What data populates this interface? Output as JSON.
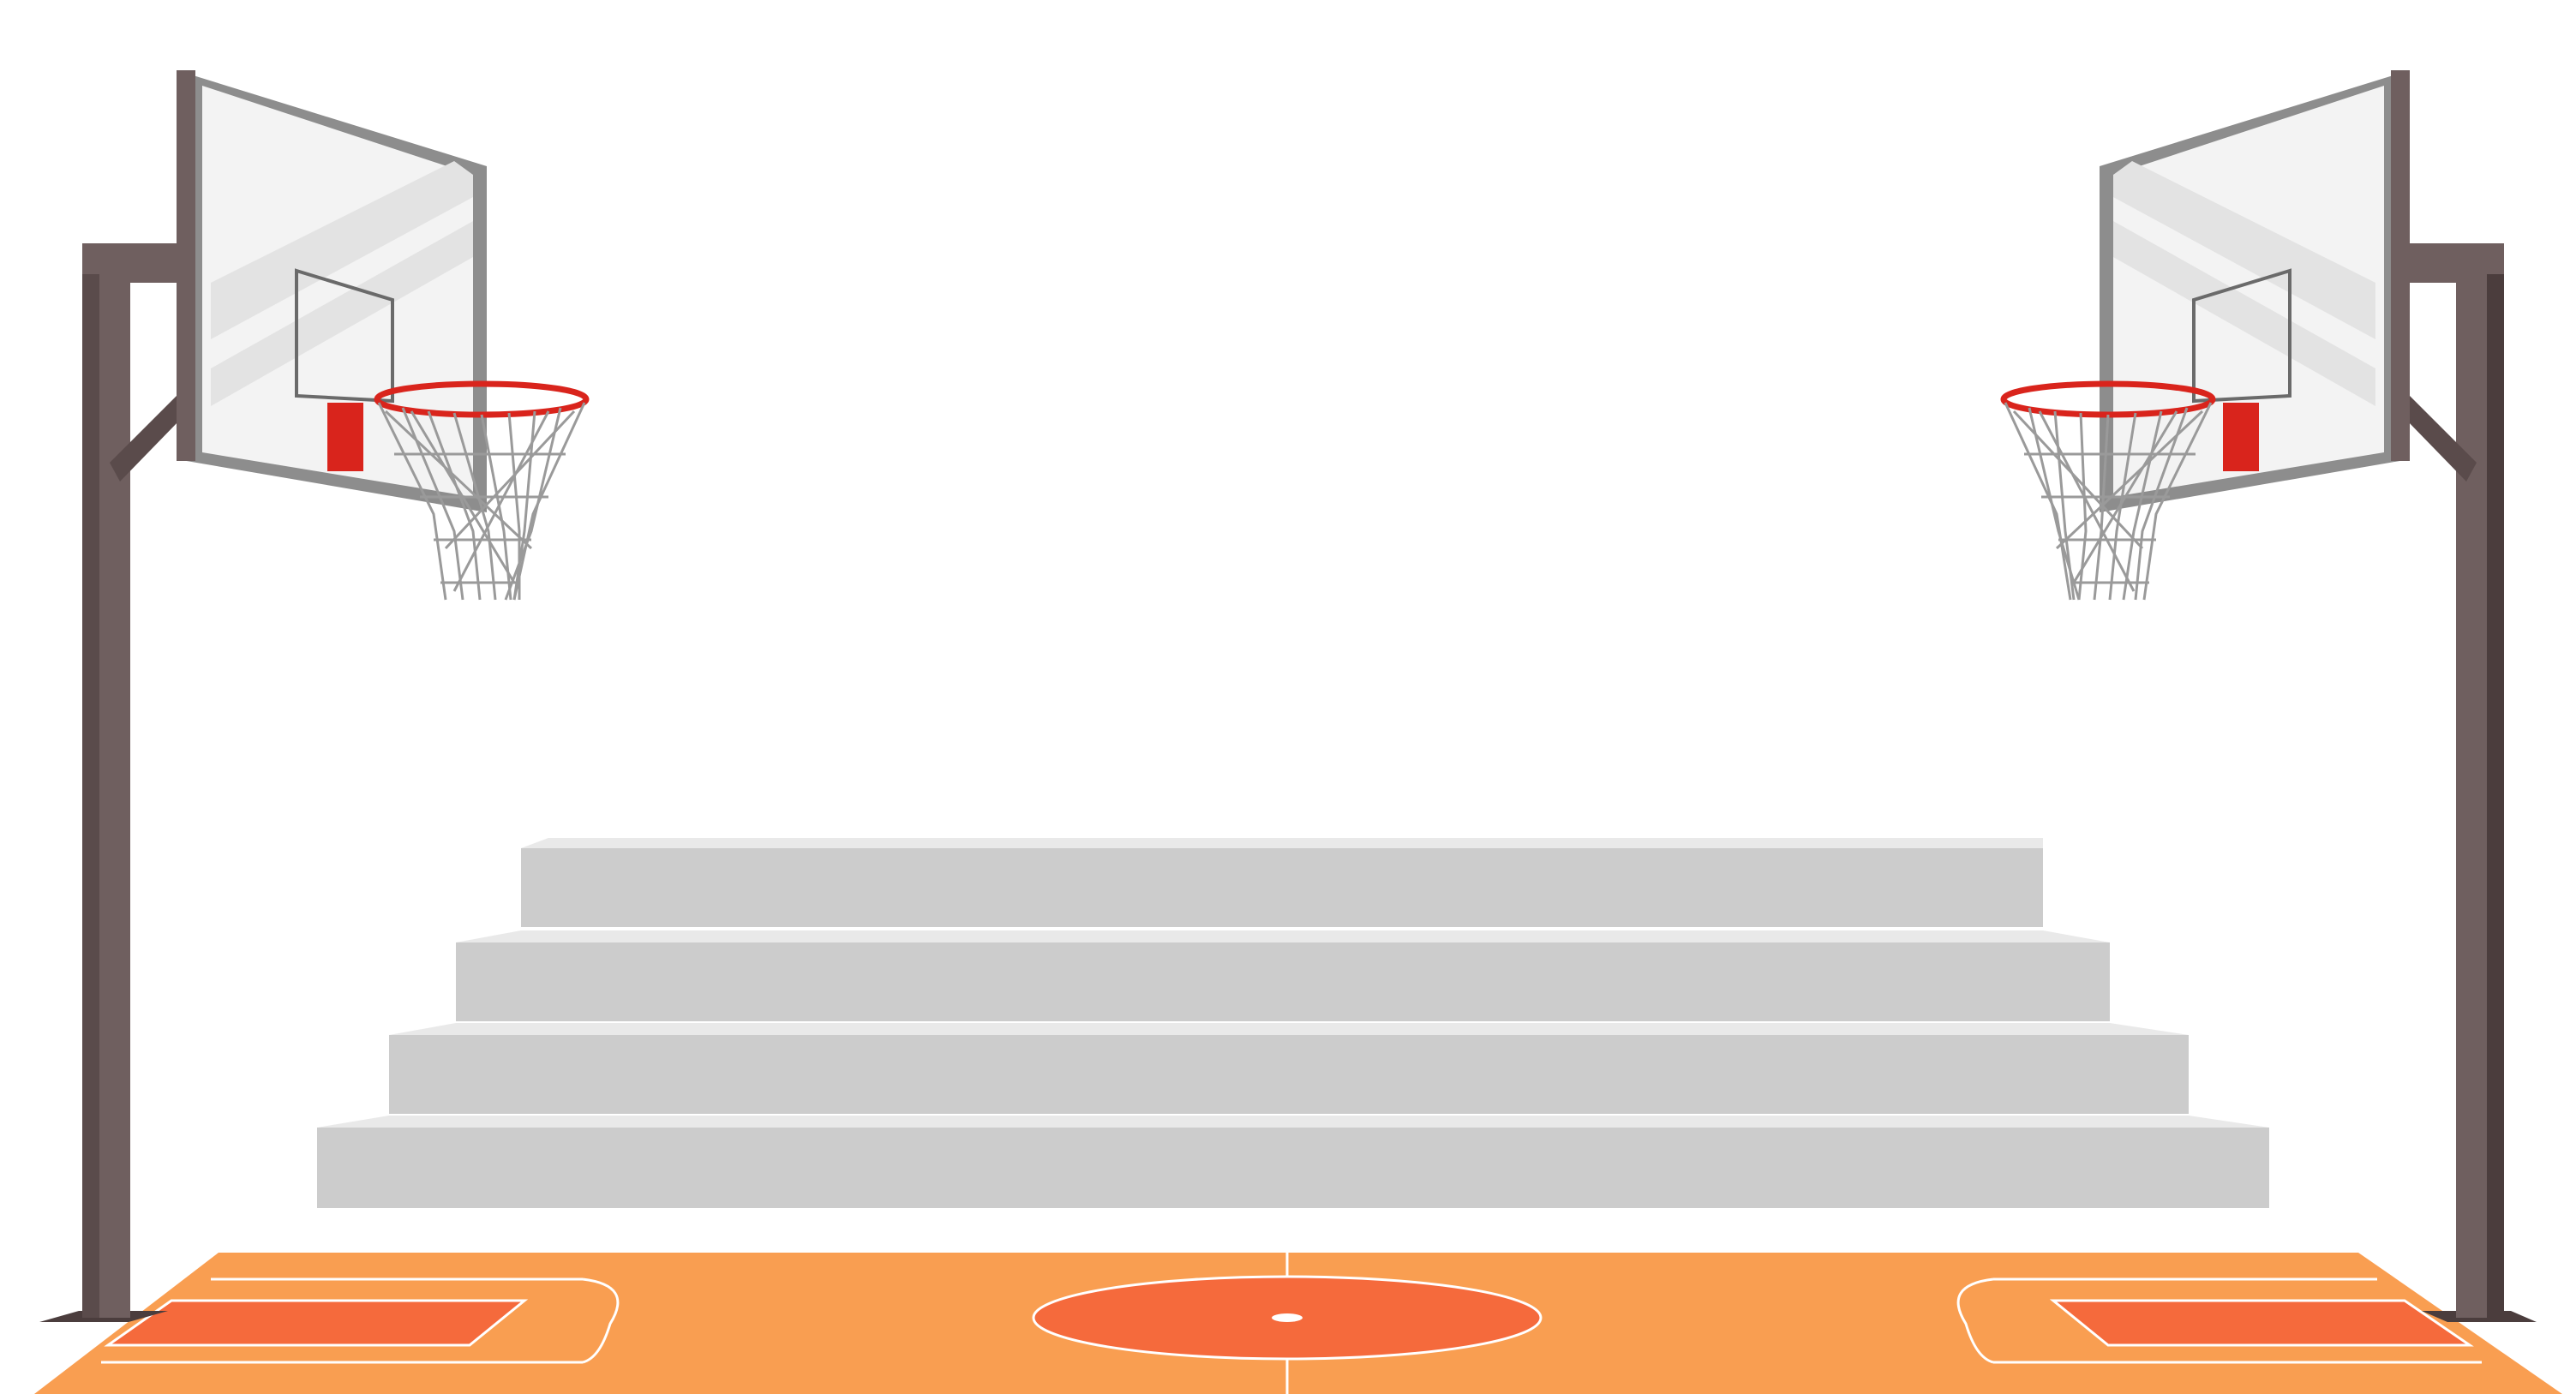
{
  "colors": {
    "background": "#ffffff",
    "court_orange": "#f99e51",
    "court_key": "#f56a3c",
    "court_lines": "#ffffff",
    "bleacher_riser": "#cccccc",
    "bleacher_tread": "#e9e9e9",
    "pole": "#6f5f5f",
    "pole_shadow": "#4b3d3d",
    "backboard_glass": "#f3f3f3",
    "backboard_frame": "#8d8d8d",
    "rim": "#d9241c",
    "net": "#9a9a9a"
  },
  "scene": {
    "hoops": [
      "left-hoop",
      "right-hoop"
    ],
    "bleacher_steps": 4,
    "court": "basketball-court"
  }
}
